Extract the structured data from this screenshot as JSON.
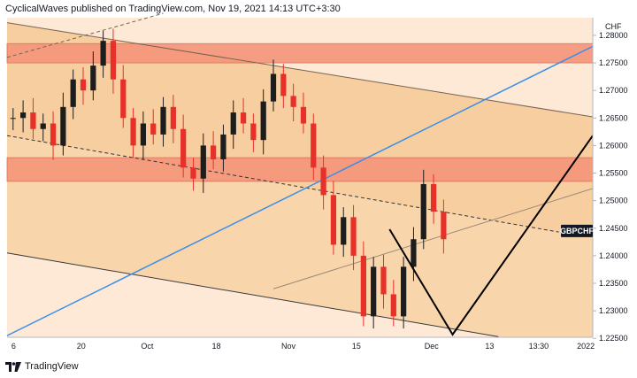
{
  "header": {
    "text": "CyclicalWaves published on TradingView.com, Nov 19, 2021 14:13 UTC+3:30"
  },
  "footer": {
    "brand": "TradingView",
    "logo": "tv-logo-icon"
  },
  "colors": {
    "bg_light": "#fde9d6",
    "bg_mid": "#f9d5ab",
    "bg_band": "#f6c997",
    "zone": "#f5957a",
    "zone_edge": "#d46a55",
    "up": "#1d1d1d",
    "down": "#e8302a",
    "blue": "#3b8fe8",
    "channel": "#7a6250",
    "projection": "#000000",
    "axis_bg": "#ffffff"
  },
  "chart_data": {
    "type": "candlestick",
    "symbol": "GBPCHF",
    "unit": "CHF",
    "ylim": [
      1.2252,
      1.2832
    ],
    "y_ticks": [
      "1.28000",
      "1.27500",
      "1.27000",
      "1.26500",
      "1.26000",
      "1.25500",
      "1.25000",
      "1.24500",
      "1.24000",
      "1.23500",
      "1.23000",
      "1.22500"
    ],
    "x_ticks": [
      {
        "label": "6",
        "pos": 0.05
      },
      {
        "label": "20",
        "pos": 6.8
      },
      {
        "label": "Oct",
        "pos": 13.4
      },
      {
        "label": "18",
        "pos": 20.3
      },
      {
        "label": "Nov",
        "pos": 27.5
      },
      {
        "label": "15",
        "pos": 34.3
      },
      {
        "label": "Dec",
        "pos": 41.8
      },
      {
        "label": "13",
        "pos": 47.6
      },
      {
        "label": "13:30",
        "pos": 52.5
      },
      {
        "label": "2022",
        "pos": 57.2
      }
    ],
    "x_domain": [
      -0.6,
      57.9
    ],
    "price_label": {
      "text": "GBPCHF",
      "value": 1.2445
    },
    "zones": [
      {
        "low": 1.275,
        "high": 1.2785
      },
      {
        "low": 1.2535,
        "high": 1.2578
      }
    ],
    "closes": [
      1.265,
      1.266,
      1.263,
      1.264,
      1.26,
      1.267,
      1.272,
      1.27,
      1.2745,
      1.279,
      1.272,
      1.265,
      1.26,
      1.264,
      1.262,
      1.267,
      1.263,
      1.256,
      1.254,
      1.26,
      1.2575,
      1.262,
      1.266,
      1.264,
      1.261,
      1.268,
      1.273,
      1.269,
      1.267,
      1.264,
      1.256,
      1.251,
      1.242,
      1.247,
      1.24,
      1.229,
      1.238,
      1.233,
      1.229,
      1.238,
      1.243,
      1.253,
      1.248,
      1.243
    ],
    "projection": [
      [
        37.6,
        1.2448
      ],
      [
        43.9,
        1.2257
      ],
      [
        58.6,
        1.2618
      ]
    ],
    "lines": {
      "top_desc": [
        [
          -0.6,
          1.2823
        ],
        [
          57.9,
          1.2652
        ]
      ],
      "dashed_top": [
        [
          -0.6,
          1.276
        ],
        [
          15.0,
          1.284
        ]
      ],
      "dashed_mid": [
        [
          -0.6,
          1.2618
        ],
        [
          54.5,
          1.2443
        ]
      ],
      "blue": [
        [
          -0.6,
          1.2255
        ],
        [
          57.9,
          1.278
        ]
      ],
      "channel_low_up": [
        [
          26.0,
          1.234
        ],
        [
          57.9,
          1.2522
        ]
      ],
      "lower_desc": [
        [
          -0.6,
          1.2405
        ],
        [
          48.5,
          1.2253
        ]
      ]
    }
  }
}
